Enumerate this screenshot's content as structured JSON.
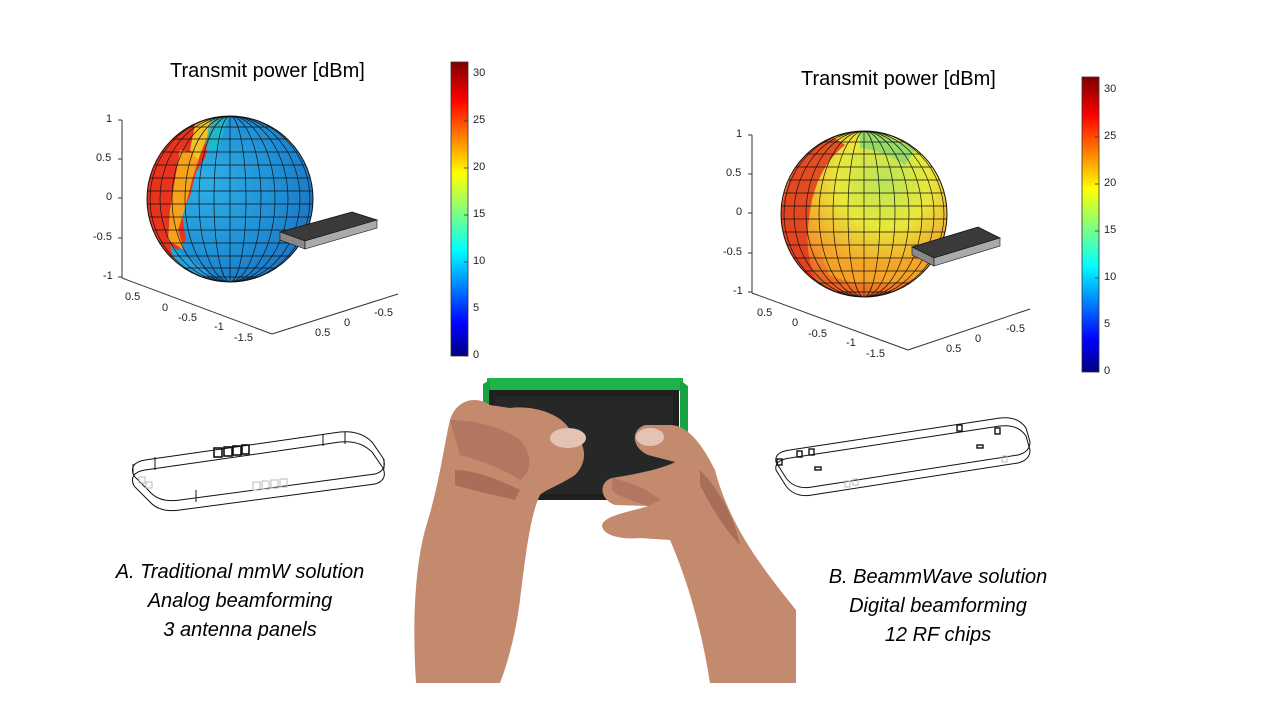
{
  "panel_a": {
    "plot_title": "Transmit power [dBm]",
    "z_ticks": [
      "1",
      "0.5",
      "0",
      "-0.5",
      "-1"
    ],
    "y_ticks": [
      "0.5",
      "0",
      "-0.5",
      "-1",
      "-1.5"
    ],
    "x_ticks": [
      "0.5",
      "0",
      "-0.5"
    ],
    "colorbar_ticks": [
      "30",
      "25",
      "20",
      "15",
      "10",
      "5",
      "0"
    ],
    "caption": [
      "A. Traditional mmW solution",
      "Analog beamforming",
      "3 antenna panels"
    ]
  },
  "panel_b": {
    "plot_title": "Transmit power [dBm]",
    "z_ticks": [
      "1",
      "0.5",
      "0",
      "-0.5",
      "-1"
    ],
    "y_ticks": [
      "0.5",
      "0",
      "-0.5",
      "-1",
      "-1.5"
    ],
    "x_ticks": [
      "0.5",
      "0",
      "-0.5"
    ],
    "colorbar_ticks": [
      "30",
      "25",
      "20",
      "15",
      "10",
      "5",
      "0"
    ],
    "caption": [
      "B. BeammWave solution",
      "Digital beamforming",
      "12 RF chips"
    ]
  },
  "colors": {
    "jet_red": "#d7191c",
    "jet_blue": "#2b83ba",
    "device_green": "#22b14c"
  }
}
